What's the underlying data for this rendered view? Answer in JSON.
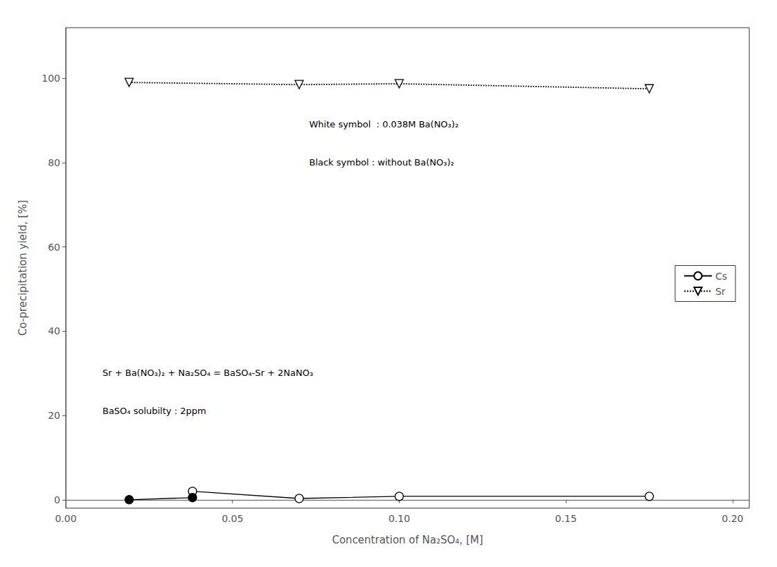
{
  "chart_data": {
    "type": "line",
    "xlabel": "Concentration of Na₂SO₄, [M]",
    "ylabel": "Co-precipitation yield, [%]",
    "xlim": [
      0.0,
      0.205
    ],
    "ylim": [
      -2,
      112
    ],
    "xticks": [
      {
        "value": 0.0,
        "label": "0.00"
      },
      {
        "value": 0.05,
        "label": "0.05"
      },
      {
        "value": 0.1,
        "label": "0.10"
      },
      {
        "value": 0.15,
        "label": "0.15"
      },
      {
        "value": 0.2,
        "label": "0.20"
      }
    ],
    "yticks": [
      0,
      20,
      40,
      60,
      80,
      100
    ],
    "grid": false,
    "legend": "right",
    "series": [
      {
        "name": "Cs",
        "color": "#000000",
        "marker": "circle-open",
        "line_style": "solid",
        "x": [
          0.038,
          0.07,
          0.1,
          0.175
        ],
        "values": [
          2.0,
          0.3,
          0.8,
          0.8
        ]
      },
      {
        "name": "Cs",
        "color": "#000000",
        "marker": "circle-filled",
        "line_style": "solid",
        "x": [
          0.019,
          0.038
        ],
        "values": [
          0.0,
          0.5
        ]
      },
      {
        "name": "Sr",
        "color": "#000000",
        "marker": "triangle-down-open",
        "line_style": "dotted",
        "x": [
          0.019,
          0.07,
          0.1,
          0.175
        ],
        "values": [
          99.0,
          98.5,
          98.7,
          97.5
        ]
      }
    ],
    "annotations": [
      {
        "text": "White symbol  : 0.038M Ba(NO₃)₂",
        "x": 0.073,
        "y": 88
      },
      {
        "text": "Black symbol : without Ba(NO₃)₂",
        "x": 0.073,
        "y": 79
      },
      {
        "text": "Sr + Ba(NO₃)₂ + Na₂SO₄ = BaSO₄-Sr + 2NaNO₃",
        "x": 0.011,
        "y": 29
      },
      {
        "text": "BaSO₄ solubilty : 2ppm",
        "x": 0.011,
        "y": 20
      }
    ]
  }
}
